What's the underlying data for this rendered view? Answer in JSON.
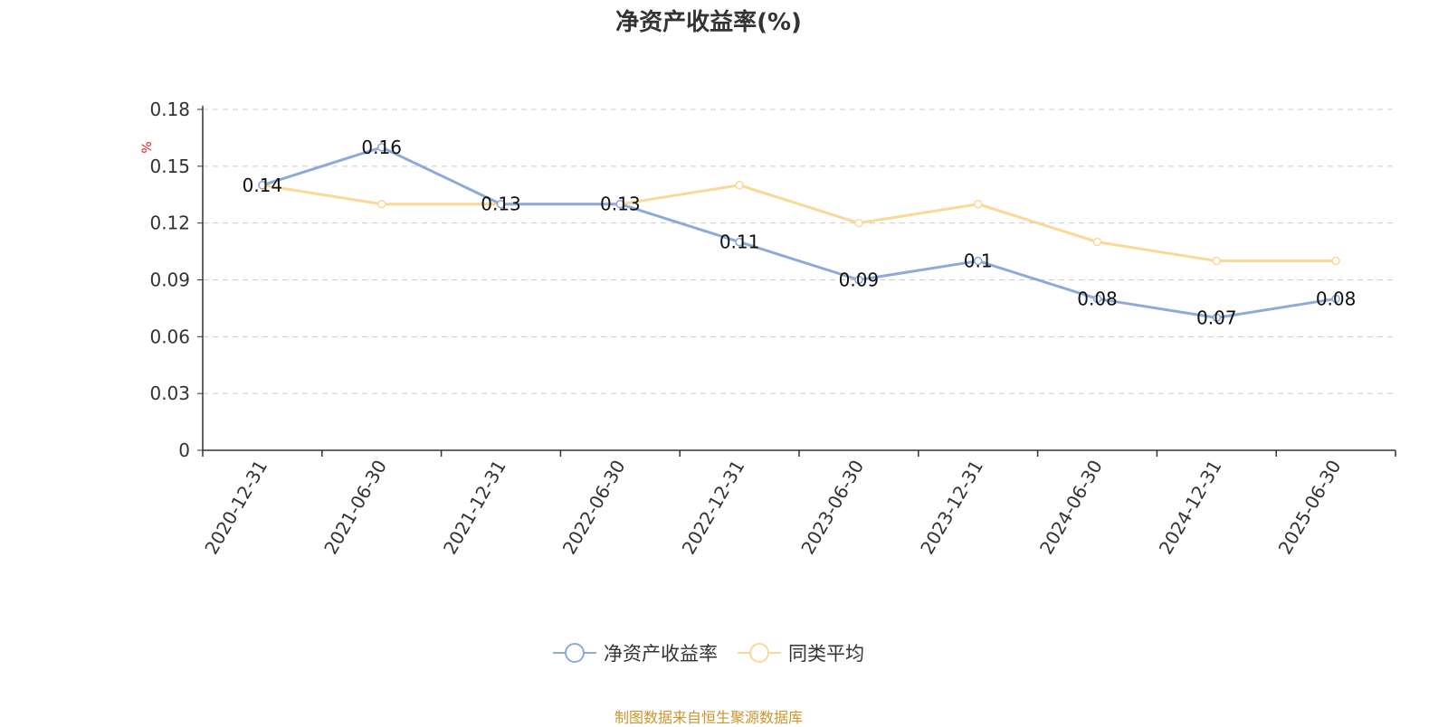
{
  "title": "净资产收益率(%)",
  "source_note": "制图数据来自恒生聚源数据库",
  "colors": {
    "series1": "#8eaad8",
    "series2": "#fad896",
    "source": "#c8962d",
    "unit": "#e02020"
  },
  "chart_data": {
    "type": "line",
    "title": "净资产收益率(%)",
    "ylabel": "%",
    "ylim": [
      0,
      0.18
    ],
    "yticks": [
      "0",
      "0.03",
      "0.06",
      "0.09",
      "0.12",
      "0.15",
      "0.18"
    ],
    "categories": [
      "2020-12-31",
      "2021-06-30",
      "2021-12-31",
      "2022-06-30",
      "2022-12-31",
      "2023-06-30",
      "2023-12-31",
      "2024-06-30",
      "2024-12-31",
      "2025-06-30"
    ],
    "grid": true,
    "legend_position": "bottom",
    "series": [
      {
        "name": "净资产收益率",
        "values": [
          0.14,
          0.16,
          0.13,
          0.13,
          0.11,
          0.09,
          0.1,
          0.08,
          0.07,
          0.08
        ],
        "labels": [
          "0.14",
          "0.16",
          "0.13",
          "0.13",
          "0.11",
          "0.09",
          "0.1",
          "0.08",
          "0.07",
          "0.08"
        ]
      },
      {
        "name": "同类平均",
        "values": [
          0.14,
          0.13,
          0.13,
          0.13,
          0.14,
          0.12,
          0.13,
          0.11,
          0.1,
          0.1
        ]
      }
    ]
  }
}
